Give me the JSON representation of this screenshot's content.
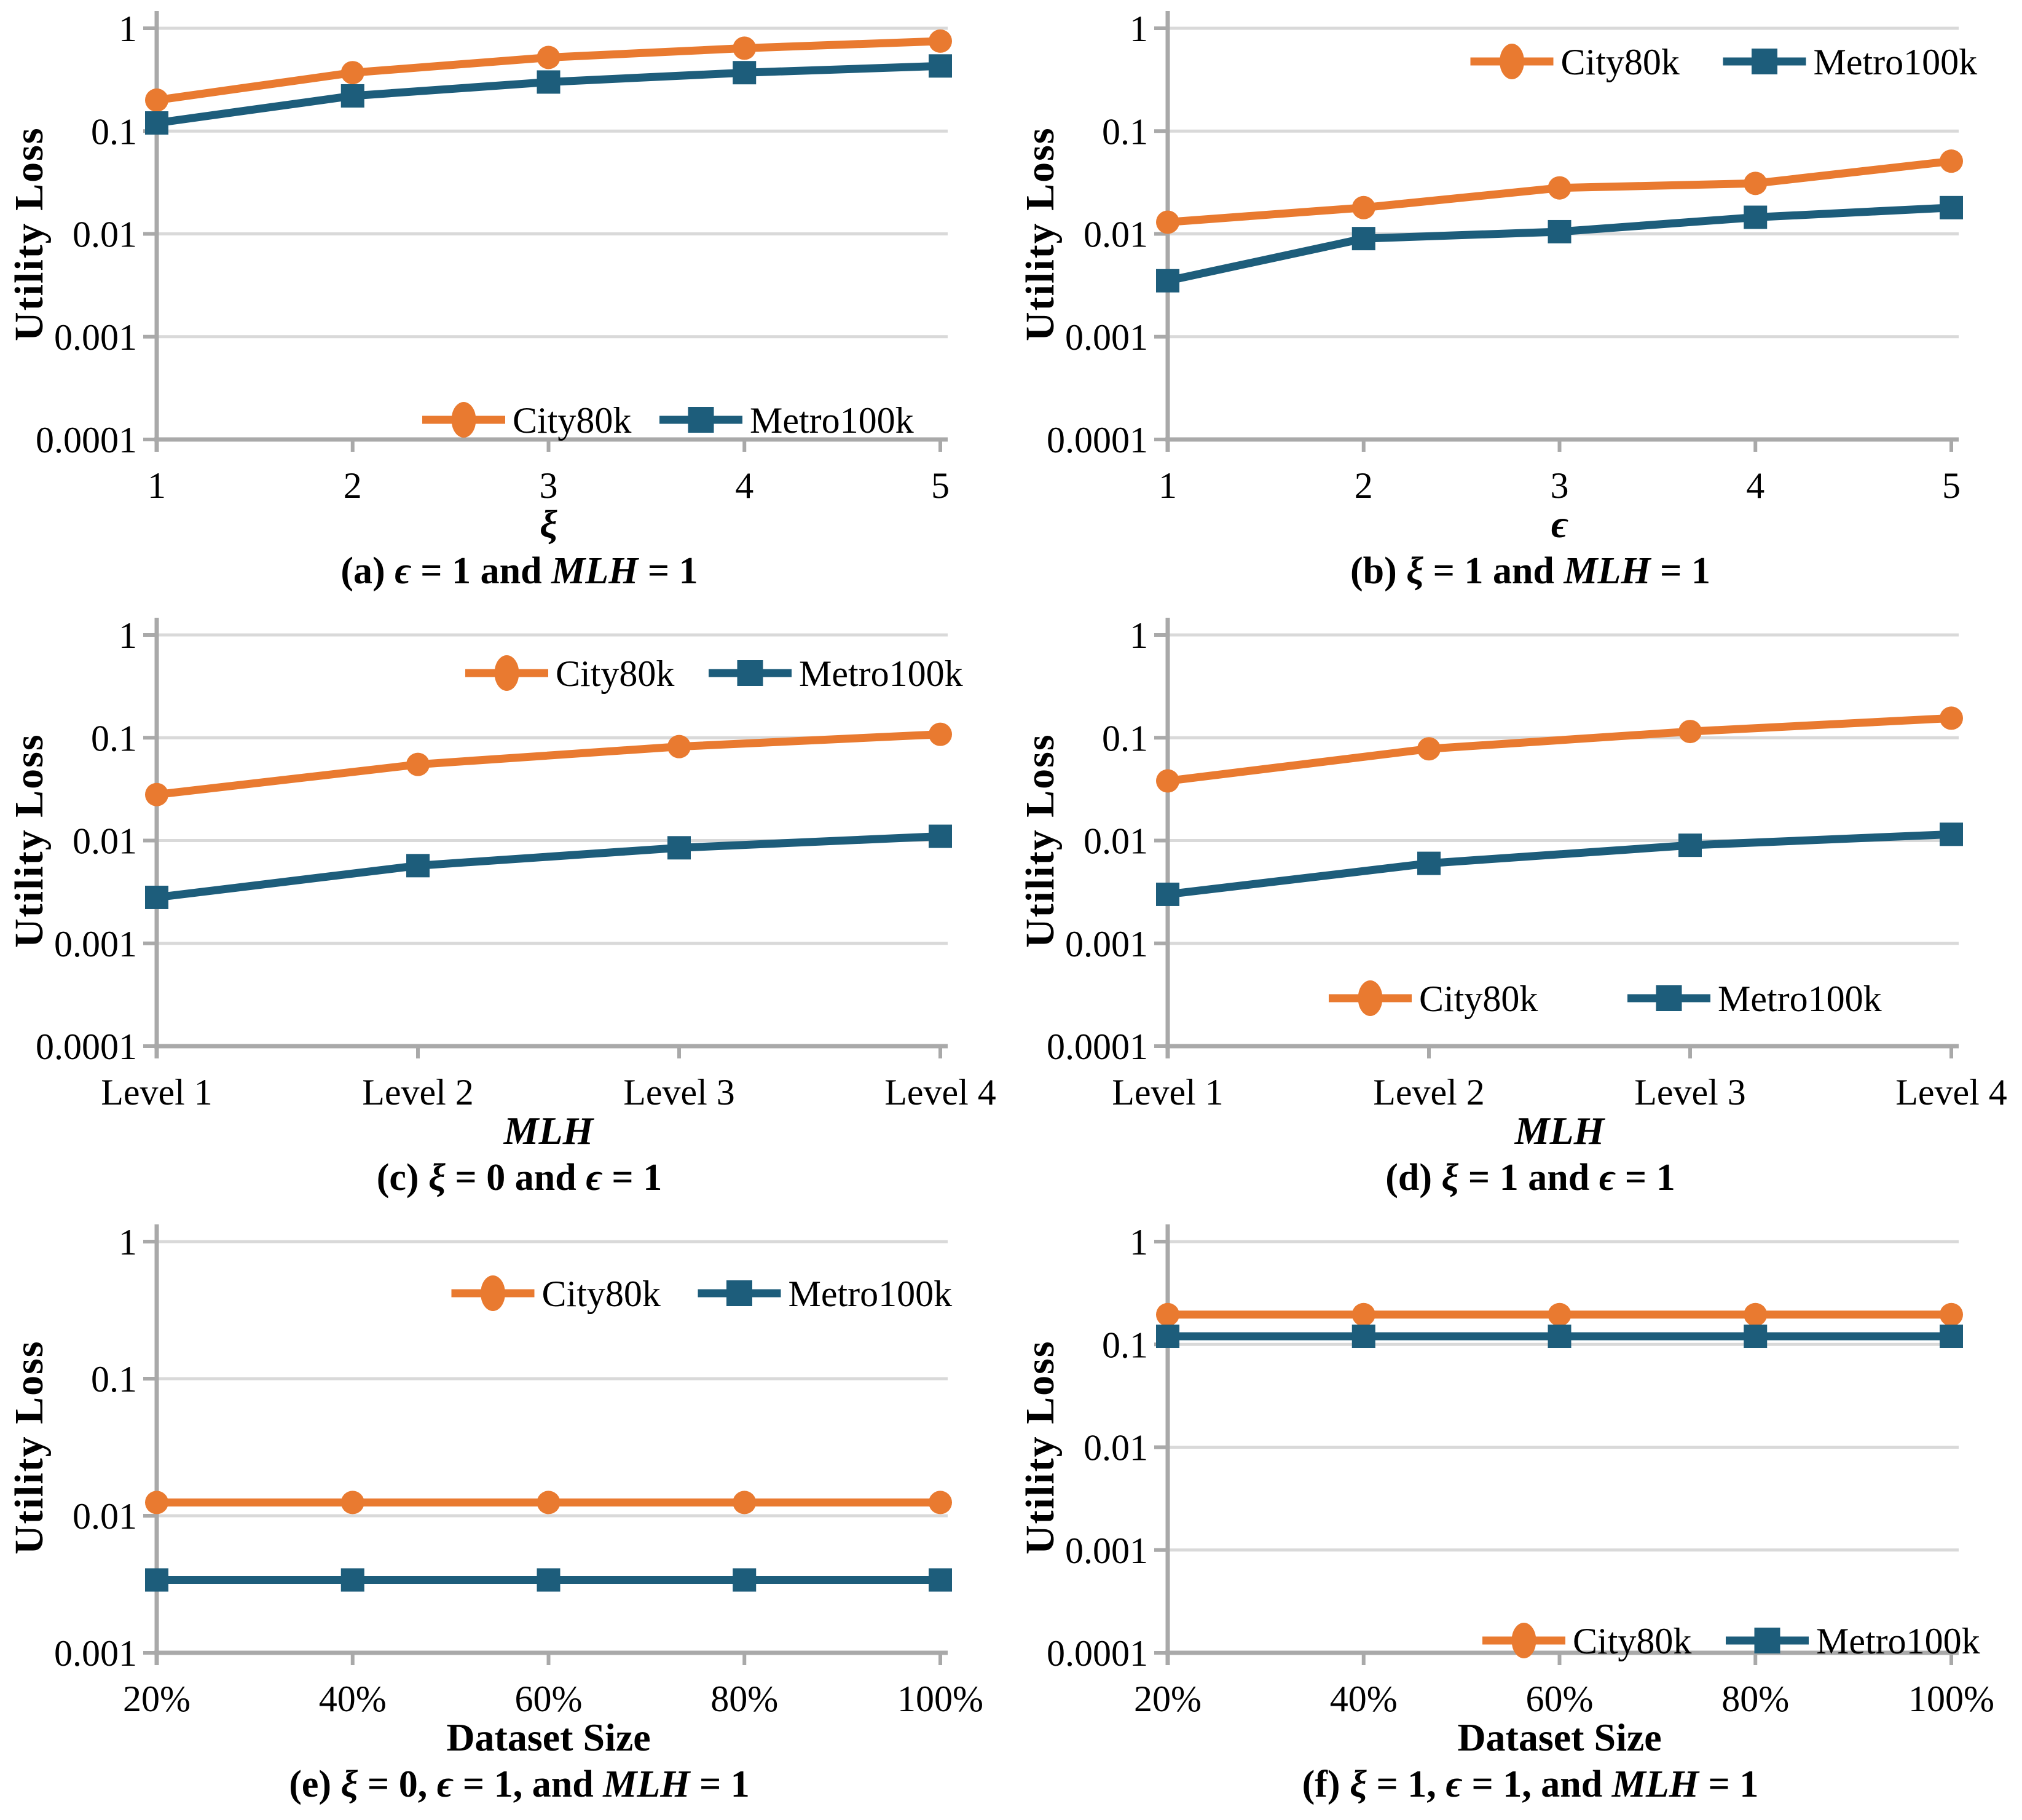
{
  "ylabel": "Utility Loss",
  "colors": {
    "axis": "#A9A9A9",
    "grid": "#D9D9D9",
    "background": "#FFFFFF",
    "series": {
      "City80k": "#E97A30",
      "Metro100k": "#1D5D7B"
    }
  },
  "markers": {
    "City80k": "circle",
    "Metro100k": "square"
  },
  "legend_labels": [
    "City80k",
    "Metro100k"
  ],
  "chart_data": [
    {
      "id": "a",
      "type": "line",
      "yscale": "log",
      "ylim": [
        0.0001,
        1
      ],
      "grid": true,
      "x_tick_labels": [
        "1",
        "2",
        "3",
        "4",
        "5"
      ],
      "y_tick_labels": [
        "1",
        "0.1",
        "0.01",
        "0.001",
        "0.0001"
      ],
      "xlabel_runs": [
        {
          "t": "ξ",
          "i": 1
        }
      ],
      "caption_runs": [
        {
          "t": "(a) "
        },
        {
          "t": "ϵ",
          "i": 1
        },
        {
          "t": " = 1 and "
        },
        {
          "t": "MLH",
          "i": 1
        },
        {
          "t": " = 1"
        }
      ],
      "series": [
        {
          "name": "City80k",
          "values": [
            0.2,
            0.37,
            0.52,
            0.64,
            0.75
          ]
        },
        {
          "name": "Metro100k",
          "values": [
            0.12,
            0.22,
            0.3,
            0.37,
            0.43
          ]
        }
      ],
      "legend": {
        "pos": "bottom",
        "cx": 1075,
        "cy": 683,
        "gap": 50
      }
    },
    {
      "id": "b",
      "type": "line",
      "yscale": "log",
      "ylim": [
        0.0001,
        1
      ],
      "grid": true,
      "x_tick_labels": [
        "1",
        "2",
        "3",
        "4",
        "5"
      ],
      "y_tick_labels": [
        "1",
        "0.1",
        "0.01",
        "0.001",
        "0.0001"
      ],
      "xlabel_runs": [
        {
          "t": "ϵ",
          "i": 1
        }
      ],
      "caption_runs": [
        {
          "t": "(b) "
        },
        {
          "t": "ξ",
          "i": 1
        },
        {
          "t": " = 1 and "
        },
        {
          "t": "MLH",
          "i": 1
        },
        {
          "t": " = 1"
        }
      ],
      "series": [
        {
          "name": "City80k",
          "values": [
            0.013,
            0.018,
            0.028,
            0.031,
            0.051
          ]
        },
        {
          "name": "Metro100k",
          "values": [
            0.0035,
            0.009,
            0.0105,
            0.0145,
            0.018
          ]
        }
      ],
      "legend": {
        "pos": "top",
        "cx": 1148,
        "cy": 100,
        "gap": 75
      }
    },
    {
      "id": "c",
      "type": "line",
      "yscale": "log",
      "ylim": [
        0.0001,
        1
      ],
      "grid": true,
      "x_tick_labels": [
        "Level 1",
        "Level 2",
        "Level 3",
        "Level 4"
      ],
      "y_tick_labels": [
        "1",
        "0.1",
        "0.01",
        "0.001",
        "0.0001"
      ],
      "xlabel_runs": [
        {
          "t": "MLH",
          "i": 1
        }
      ],
      "caption_runs": [
        {
          "t": "(c) "
        },
        {
          "t": "ξ",
          "i": 1
        },
        {
          "t": " = 0 and "
        },
        {
          "t": "ϵ",
          "i": 1
        },
        {
          "t": " = 1"
        }
      ],
      "series": [
        {
          "name": "City80k",
          "values": [
            0.028,
            0.055,
            0.082,
            0.108
          ]
        },
        {
          "name": "Metro100k",
          "values": [
            0.0028,
            0.0057,
            0.0085,
            0.011
          ]
        }
      ],
      "legend": {
        "pos": "top",
        "cx": 1150,
        "cy": 108,
        "gap": 60
      }
    },
    {
      "id": "d",
      "type": "line",
      "yscale": "log",
      "ylim": [
        0.0001,
        1
      ],
      "grid": true,
      "x_tick_labels": [
        "Level 1",
        "Level 2",
        "Level 3",
        "Level 4"
      ],
      "y_tick_labels": [
        "1",
        "0.1",
        "0.01",
        "0.001",
        "0.0001"
      ],
      "xlabel_runs": [
        {
          "t": "MLH",
          "i": 1
        }
      ],
      "caption_runs": [
        {
          "t": "(d) "
        },
        {
          "t": "ξ",
          "i": 1
        },
        {
          "t": " = 1 and "
        },
        {
          "t": "ϵ",
          "i": 1
        },
        {
          "t": " = 1"
        }
      ],
      "series": [
        {
          "name": "City80k",
          "values": [
            0.038,
            0.078,
            0.115,
            0.155
          ]
        },
        {
          "name": "Metro100k",
          "values": [
            0.003,
            0.006,
            0.009,
            0.0115
          ]
        }
      ],
      "legend": {
        "pos": "bottom",
        "cx": 955,
        "cy": 637,
        "gap": 150
      }
    },
    {
      "id": "e",
      "type": "line",
      "yscale": "log",
      "ylim": [
        0.001,
        1
      ],
      "grid": true,
      "x_tick_labels": [
        "20%",
        "40%",
        "60%",
        "80%",
        "100%"
      ],
      "y_tick_labels": [
        "1",
        "0.1",
        "0.01",
        "0.001"
      ],
      "xlabel_runs": [
        {
          "t": "Dataset Size"
        }
      ],
      "caption_runs": [
        {
          "t": "(e) "
        },
        {
          "t": "ξ",
          "i": 1
        },
        {
          "t": " = 0, "
        },
        {
          "t": "ϵ",
          "i": 1
        },
        {
          "t": " = 1, and "
        },
        {
          "t": "MLH",
          "i": 1
        },
        {
          "t": " = 1"
        }
      ],
      "series": [
        {
          "name": "City80k",
          "values": [
            0.0125,
            0.0125,
            0.0125,
            0.0125,
            0.0125
          ]
        },
        {
          "name": "Metro100k",
          "values": [
            0.0034,
            0.0034,
            0.0034,
            0.0034,
            0.0034
          ]
        }
      ],
      "legend": {
        "pos": "top",
        "cx": 1130,
        "cy": 130,
        "gap": 65
      }
    },
    {
      "id": "f",
      "type": "line",
      "yscale": "log",
      "ylim": [
        0.0001,
        1
      ],
      "grid": true,
      "x_tick_labels": [
        "20%",
        "40%",
        "60%",
        "80%",
        "100%"
      ],
      "y_tick_labels": [
        "1",
        "0.1",
        "0.01",
        "0.001",
        "0.0001"
      ],
      "xlabel_runs": [
        {
          "t": "Dataset Size"
        }
      ],
      "caption_runs": [
        {
          "t": "(f) "
        },
        {
          "t": "ξ",
          "i": 1
        },
        {
          "t": " = 1, "
        },
        {
          "t": "ϵ",
          "i": 1
        },
        {
          "t": " = 1, and "
        },
        {
          "t": "MLH",
          "i": 1
        },
        {
          "t": " = 1"
        }
      ],
      "series": [
        {
          "name": "City80k",
          "values": [
            0.195,
            0.195,
            0.195,
            0.195,
            0.195
          ]
        },
        {
          "name": "Metro100k",
          "values": [
            0.12,
            0.12,
            0.12,
            0.12,
            0.12
          ]
        }
      ],
      "legend": {
        "pos": "bottom",
        "cx": 1160,
        "cy": 695,
        "gap": 60
      }
    }
  ]
}
